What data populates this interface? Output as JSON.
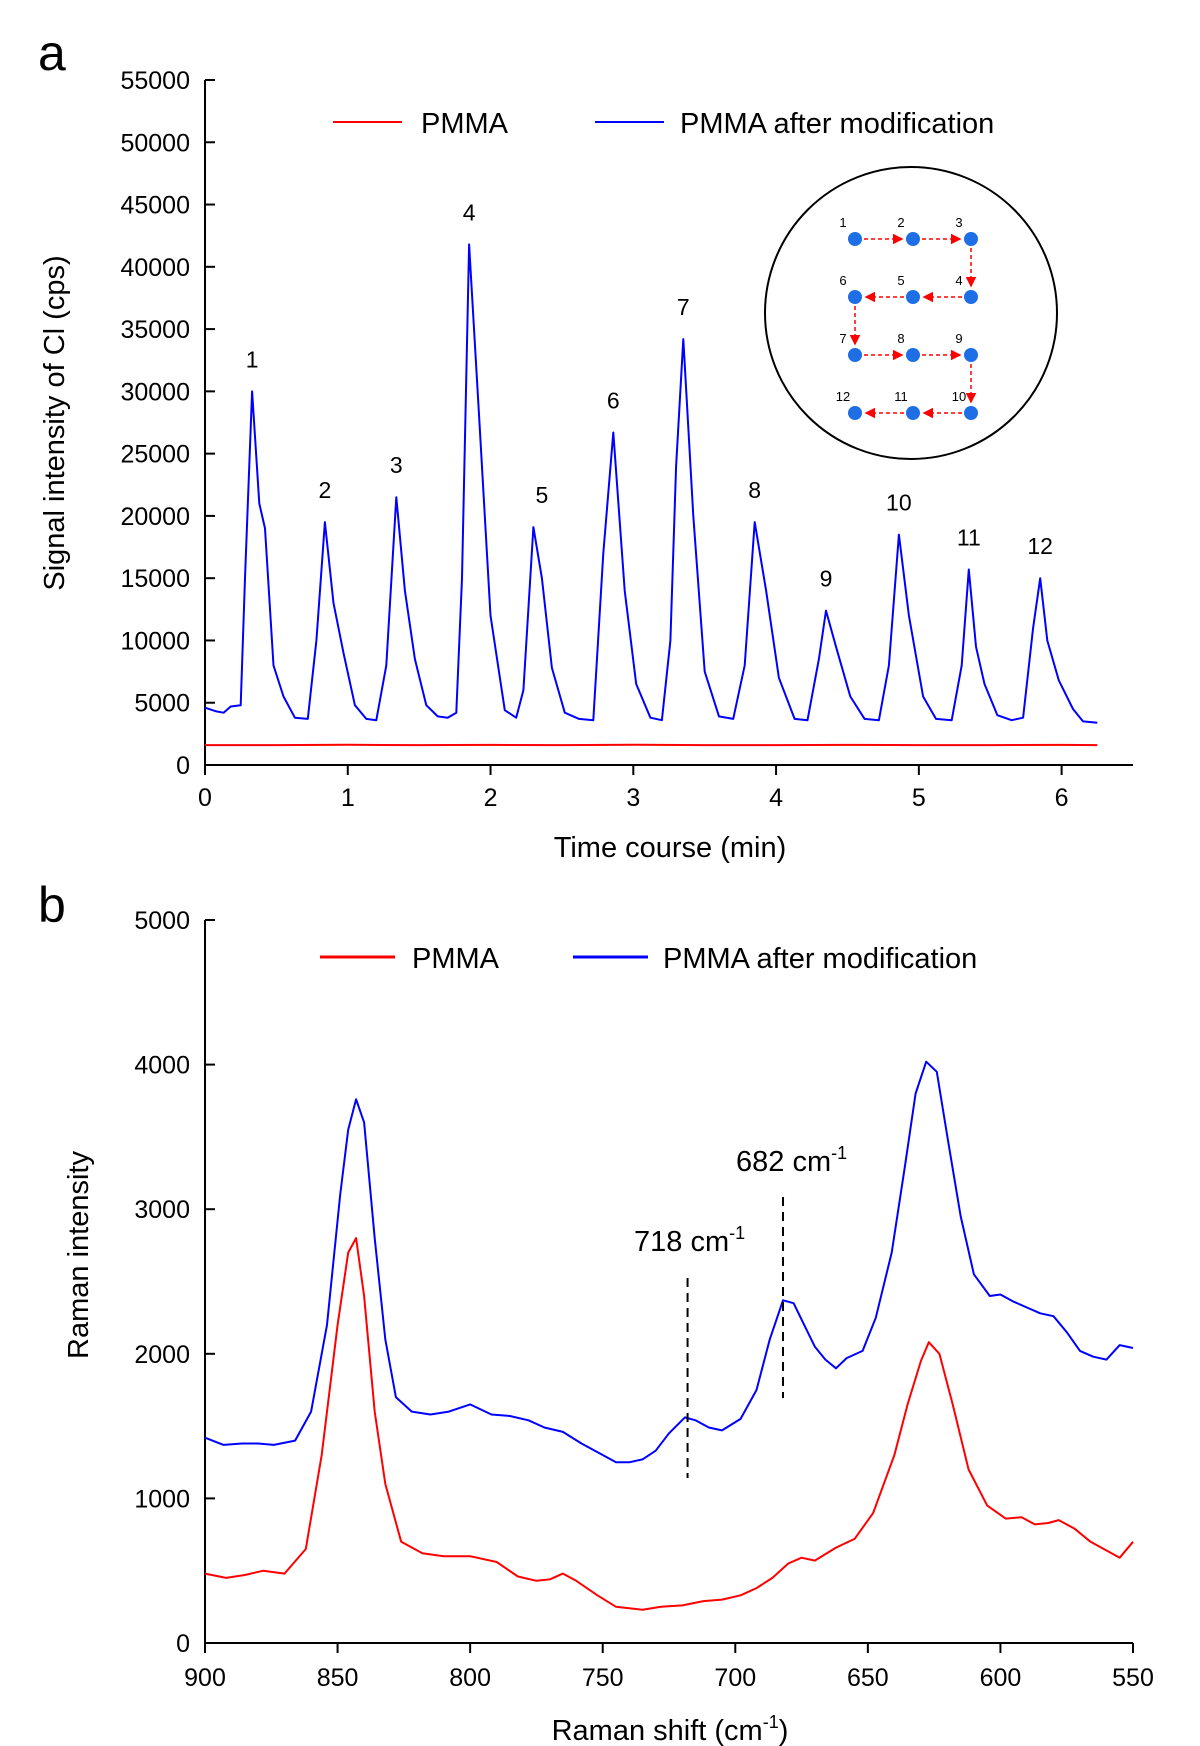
{
  "chart_data": [
    {
      "panel": "a",
      "type": "line",
      "title": "",
      "xlabel": "Time course (min)",
      "ylabel": "Signal intensity of Cl (cps)",
      "xlim": [
        0,
        6.5
      ],
      "ylim": [
        0,
        55000
      ],
      "x_ticks": [
        0,
        1,
        2,
        3,
        4,
        5,
        6
      ],
      "y_ticks": [
        0,
        5000,
        10000,
        15000,
        20000,
        25000,
        30000,
        35000,
        40000,
        45000,
        50000,
        55000
      ],
      "legend_position": "top",
      "series": [
        {
          "name": "PMMA",
          "color": "#ff0000",
          "x": [
            0,
            0.5,
            1.0,
            1.5,
            2.0,
            2.5,
            3.0,
            3.5,
            4.0,
            4.5,
            5.0,
            5.5,
            6.0,
            6.25
          ],
          "y": [
            1600,
            1600,
            1620,
            1600,
            1610,
            1600,
            1620,
            1600,
            1600,
            1610,
            1600,
            1600,
            1610,
            1600
          ]
        },
        {
          "name": "PMMA after modification",
          "color": "#0000ff",
          "x": [
            0,
            0.08,
            0.13,
            0.18,
            0.25,
            0.28,
            0.33,
            0.38,
            0.42,
            0.48,
            0.55,
            0.63,
            0.72,
            0.78,
            0.84,
            0.9,
            0.97,
            1.05,
            1.13,
            1.2,
            1.27,
            1.34,
            1.4,
            1.47,
            1.55,
            1.63,
            1.7,
            1.76,
            1.8,
            1.85,
            1.92,
            2.0,
            2.1,
            2.18,
            2.23,
            2.3,
            2.36,
            2.43,
            2.52,
            2.62,
            2.72,
            2.79,
            2.86,
            2.94,
            3.02,
            3.12,
            3.2,
            3.26,
            3.3,
            3.35,
            3.42,
            3.5,
            3.6,
            3.7,
            3.78,
            3.85,
            3.93,
            4.02,
            4.13,
            4.22,
            4.3,
            4.35,
            4.42,
            4.52,
            4.62,
            4.72,
            4.79,
            4.86,
            4.93,
            5.03,
            5.12,
            5.23,
            5.3,
            5.35,
            5.4,
            5.46,
            5.55,
            5.65,
            5.73,
            5.8,
            5.85,
            5.9,
            5.98,
            6.08,
            6.15,
            6.25
          ],
          "y": [
            4600,
            4300,
            4200,
            4700,
            4800,
            15000,
            30000,
            21000,
            19000,
            8000,
            5500,
            3800,
            3700,
            10000,
            19500,
            13000,
            9000,
            4800,
            3700,
            3600,
            8000,
            21500,
            14000,
            8500,
            4800,
            3900,
            3800,
            4200,
            15000,
            41800,
            28000,
            12000,
            4400,
            3800,
            6000,
            19100,
            15000,
            7800,
            4200,
            3700,
            3600,
            17000,
            26700,
            14000,
            6500,
            3800,
            3600,
            10000,
            24000,
            34200,
            20000,
            7500,
            3900,
            3700,
            8000,
            19500,
            14000,
            7000,
            3700,
            3600,
            8500,
            12400,
            9500,
            5500,
            3700,
            3600,
            8000,
            18500,
            12000,
            5500,
            3700,
            3600,
            8000,
            15700,
            9500,
            6500,
            4000,
            3600,
            3800,
            11000,
            15000,
            10000,
            6800,
            4500,
            3500,
            3400
          ]
        }
      ],
      "peak_labels": [
        {
          "label": "1",
          "x": 0.33,
          "y": 30000
        },
        {
          "label": "2",
          "x": 0.84,
          "y": 19500
        },
        {
          "label": "3",
          "x": 1.34,
          "y": 21500
        },
        {
          "label": "4",
          "x": 1.85,
          "y": 41800
        },
        {
          "label": "5",
          "x": 2.36,
          "y": 19100
        },
        {
          "label": "6",
          "x": 2.86,
          "y": 26700
        },
        {
          "label": "7",
          "x": 3.35,
          "y": 34200
        },
        {
          "label": "8",
          "x": 3.85,
          "y": 19500
        },
        {
          "label": "9",
          "x": 4.35,
          "y": 12400
        },
        {
          "label": "10",
          "x": 4.86,
          "y": 18500
        },
        {
          "label": "11",
          "x": 5.35,
          "y": 15700
        },
        {
          "label": "12",
          "x": 5.85,
          "y": 15000
        }
      ],
      "inset": {
        "description_labels": [
          "1",
          "2",
          "3",
          "6",
          "5",
          "4",
          "7",
          "8",
          "9",
          "12",
          "11",
          "10"
        ],
        "dot_color": "#1e6fe6",
        "arrow_color": "#ff0000"
      }
    },
    {
      "panel": "b",
      "type": "line",
      "title": "",
      "xlabel": "Raman shift (cm",
      "xlabel_sup": "-1",
      "xlabel_suffix": ")",
      "ylabel": "Raman intensity",
      "xlim": [
        900,
        550
      ],
      "ylim": [
        0,
        5000
      ],
      "x_ticks": [
        900,
        850,
        800,
        750,
        700,
        650,
        600,
        550
      ],
      "y_ticks": [
        0,
        1000,
        2000,
        3000,
        4000,
        5000
      ],
      "legend_position": "top",
      "series": [
        {
          "name": "PMMA",
          "color": "#ff0000",
          "x": [
            900,
            892,
            885,
            878,
            870,
            862,
            856,
            850,
            846,
            843,
            840,
            836,
            832,
            826,
            818,
            810,
            800,
            790,
            782,
            775,
            770,
            765,
            760,
            752,
            745,
            740,
            735,
            728,
            720,
            712,
            705,
            698,
            692,
            686,
            680,
            675,
            670,
            662,
            655,
            648,
            640,
            635,
            630,
            627,
            623,
            618,
            612,
            605,
            598,
            592,
            587,
            582,
            578,
            572,
            566,
            560,
            555,
            550
          ],
          "y": [
            480,
            450,
            470,
            500,
            480,
            650,
            1300,
            2200,
            2700,
            2800,
            2400,
            1600,
            1100,
            700,
            620,
            600,
            600,
            560,
            460,
            430,
            440,
            480,
            430,
            330,
            250,
            240,
            230,
            250,
            260,
            290,
            300,
            330,
            380,
            450,
            550,
            590,
            570,
            660,
            720,
            900,
            1300,
            1650,
            1950,
            2080,
            2000,
            1650,
            1200,
            950,
            860,
            870,
            820,
            830,
            850,
            790,
            700,
            640,
            590,
            700
          ]
        },
        {
          "name": "PMMA after modification",
          "color": "#0000ff",
          "x": [
            900,
            893,
            886,
            880,
            874,
            866,
            860,
            854,
            849,
            846,
            843,
            840,
            836,
            832,
            828,
            822,
            815,
            808,
            800,
            792,
            785,
            778,
            772,
            765,
            758,
            750,
            745,
            740,
            735,
            730,
            725,
            719,
            715,
            710,
            705,
            698,
            692,
            687,
            682,
            678,
            674,
            670,
            666,
            662,
            658,
            652,
            647,
            641,
            636,
            632,
            628,
            624,
            620,
            615,
            610,
            604,
            600,
            595,
            590,
            585,
            580,
            575,
            570,
            565,
            560,
            555,
            550
          ],
          "y": [
            1420,
            1370,
            1380,
            1380,
            1370,
            1400,
            1600,
            2200,
            3100,
            3550,
            3760,
            3600,
            2800,
            2100,
            1700,
            1600,
            1580,
            1600,
            1650,
            1580,
            1570,
            1540,
            1490,
            1460,
            1380,
            1300,
            1250,
            1250,
            1270,
            1330,
            1450,
            1560,
            1540,
            1490,
            1470,
            1550,
            1750,
            2100,
            2370,
            2350,
            2200,
            2050,
            1960,
            1900,
            1970,
            2020,
            2250,
            2700,
            3300,
            3800,
            4020,
            3950,
            3500,
            2950,
            2550,
            2400,
            2410,
            2360,
            2320,
            2280,
            2260,
            2150,
            2020,
            1980,
            1960,
            2060,
            2040
          ]
        }
      ],
      "annotations": [
        {
          "text": "718 cm",
          "sup": "-1",
          "x": 718
        },
        {
          "text": "682 cm",
          "sup": "-1",
          "x": 682
        }
      ]
    }
  ],
  "panels": {
    "a": {
      "letter": "a"
    },
    "b": {
      "letter": "b"
    }
  }
}
